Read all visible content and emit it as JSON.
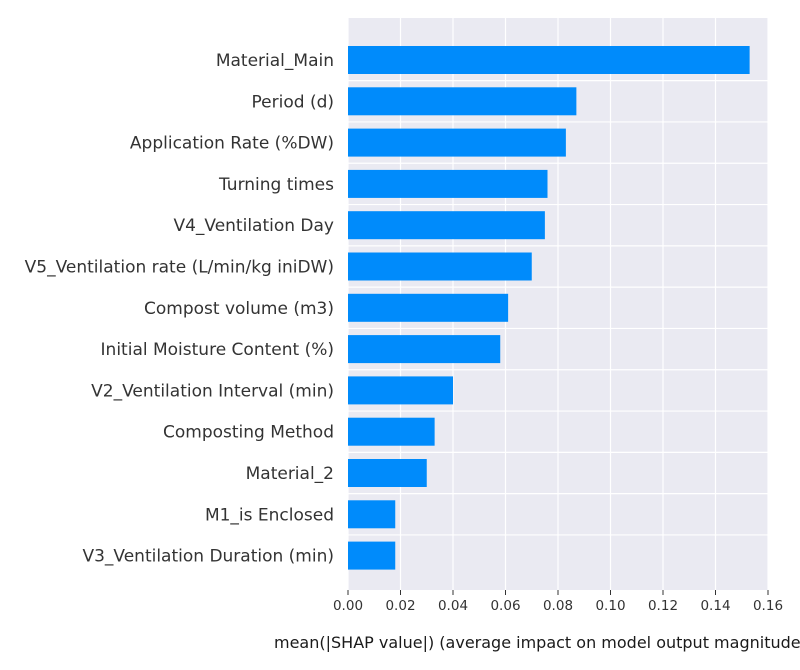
{
  "chart_data": {
    "type": "bar",
    "orientation": "horizontal",
    "categories": [
      "Material_Main",
      "Period (d)",
      "Application Rate (%DW)",
      "Turning times",
      "V4_Ventilation Day",
      "V5_Ventilation rate (L/min/kg iniDW)",
      "Compost volume (m3)",
      "Initial Moisture Content (%)",
      "V2_Ventilation Interval (min)",
      "Composting Method",
      "Material_2",
      "M1_is Enclosed",
      "V3_Ventilation Duration (min)"
    ],
    "values": [
      0.153,
      0.087,
      0.083,
      0.076,
      0.075,
      0.07,
      0.061,
      0.058,
      0.04,
      0.033,
      0.03,
      0.018,
      0.018
    ],
    "title": "",
    "xlabel": "mean(|SHAP value|) (average impact on model output magnitude)",
    "ylabel": "",
    "xlim": [
      0,
      0.16
    ],
    "x_ticks": [
      "0.00",
      "0.02",
      "0.04",
      "0.06",
      "0.08",
      "0.10",
      "0.12",
      "0.14",
      "0.16"
    ],
    "grid": true,
    "legend": "none",
    "colors": {
      "bar": "#008bfb",
      "background": "#eaeaf2",
      "grid": "#ffffff"
    }
  }
}
